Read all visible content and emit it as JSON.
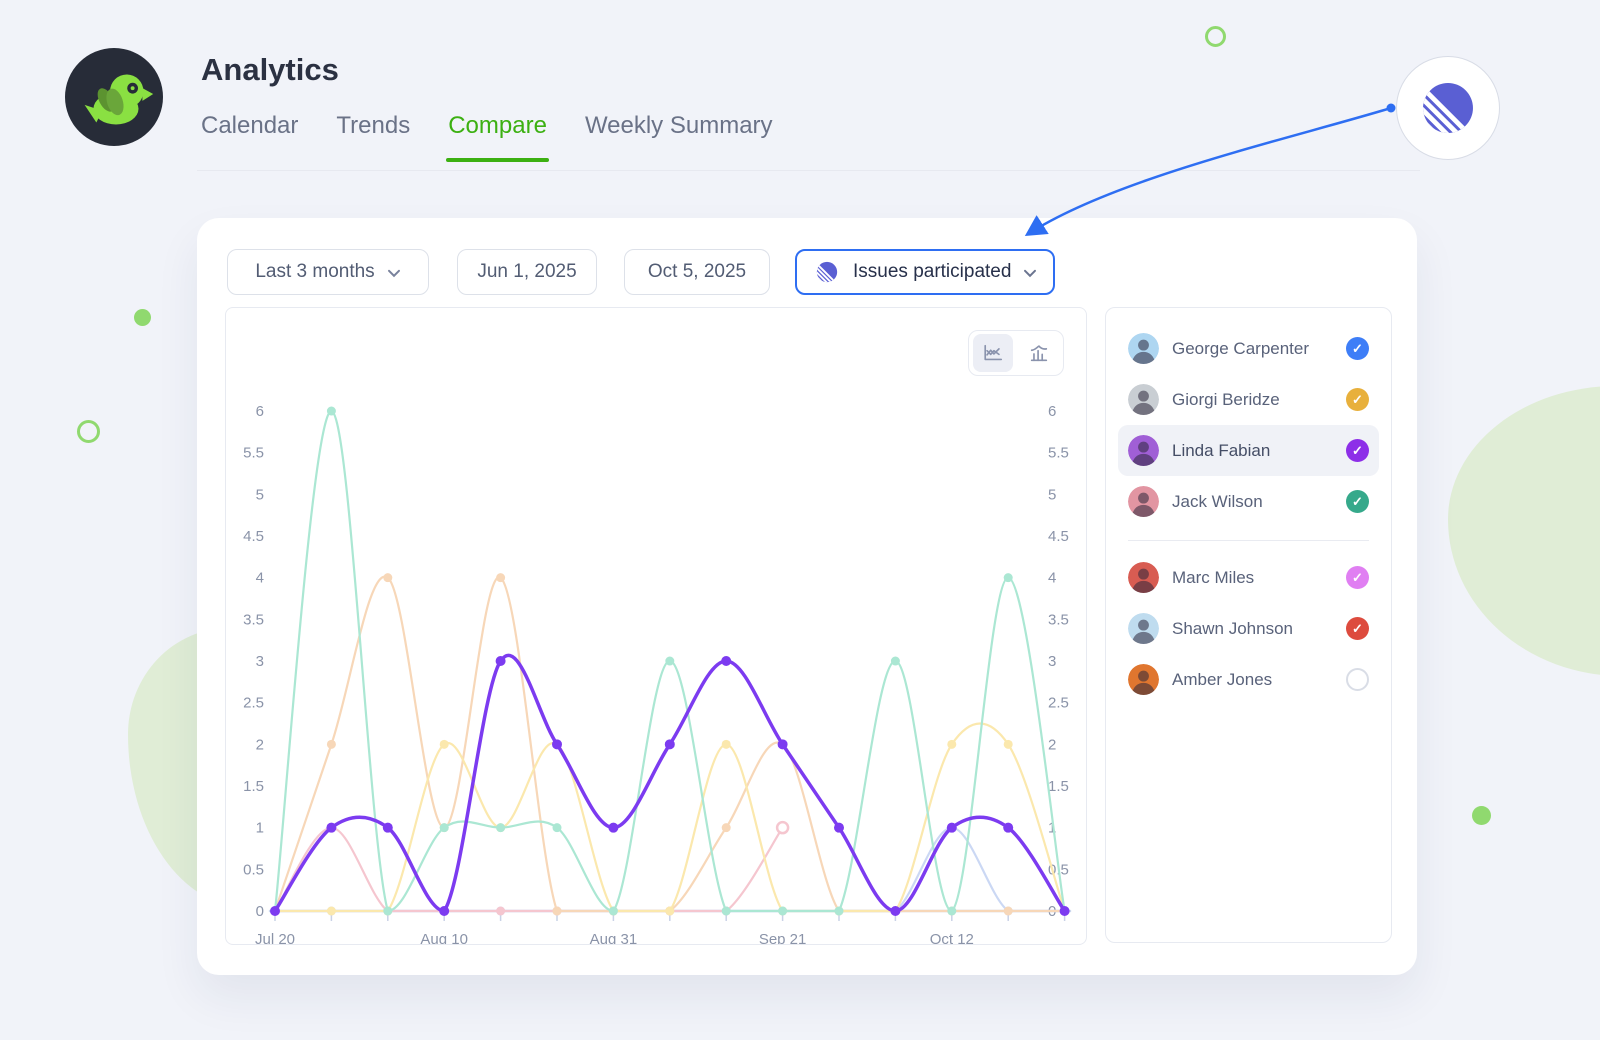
{
  "page": {
    "background": "#f1f3f9"
  },
  "header": {
    "title": "Analytics",
    "tabs": [
      {
        "label": "Calendar",
        "active": false
      },
      {
        "label": "Trends",
        "active": false
      },
      {
        "label": "Compare",
        "active": true
      },
      {
        "label": "Weekly Summary",
        "active": false
      }
    ],
    "accent_green": "#3cb012"
  },
  "profile": {
    "icon": "striped-circle-logo",
    "color": "#5a5fd3"
  },
  "annotation_arrow": {
    "color": "#2e6ef2",
    "from": "profile-avatar",
    "to": "metric-dropdown"
  },
  "filters": {
    "range_label": "Last 3 months",
    "start_date": "Jun 1, 2025",
    "end_date": "Oct 5, 2025",
    "metric_label": "Issues participated",
    "metric_icon": "striped-circle-logo",
    "metric_border": "#2e6ef2"
  },
  "chart_toggle": {
    "options": [
      "line-chart",
      "bar-chart"
    ],
    "active": "line-chart"
  },
  "people": [
    {
      "name": "George Carpenter",
      "checked": true,
      "check_color": "#3e7ef7",
      "avatar_color": "#aed6f1",
      "highlighted": false,
      "group": 1
    },
    {
      "name": "Giorgi Beridze",
      "checked": true,
      "check_color": "#e8b03c",
      "avatar_color": "#c9ced3",
      "highlighted": false,
      "group": 1
    },
    {
      "name": "Linda Fabian",
      "checked": true,
      "check_color": "#8d2fe8",
      "avatar_color": "#a05fd6",
      "highlighted": true,
      "group": 1
    },
    {
      "name": "Jack Wilson",
      "checked": true,
      "check_color": "#36a98b",
      "avatar_color": "#e295a2",
      "highlighted": false,
      "group": 1
    },
    {
      "name": "Marc Miles",
      "checked": true,
      "check_color": "#e07ff2",
      "avatar_color": "#d85c52",
      "highlighted": false,
      "group": 2
    },
    {
      "name": "Shawn Johnson",
      "checked": true,
      "check_color": "#dd4b3e",
      "avatar_color": "#bfdcef",
      "highlighted": false,
      "group": 2
    },
    {
      "name": "Amber Jones",
      "checked": false,
      "check_color": null,
      "avatar_color": "#e0762f",
      "highlighted": false,
      "group": 2
    }
  ],
  "chart_data": {
    "type": "line",
    "n_points": 15,
    "points_per_week": 1,
    "x_tick_labels": [
      "Jul 20",
      "Aug 10",
      "Aug 31",
      "Sep 21",
      "Oct 12"
    ],
    "label_positions": [
      0,
      3,
      6,
      9,
      12
    ],
    "ylim": [
      0,
      6
    ],
    "yticks": [
      0,
      0.5,
      1,
      1.5,
      2,
      2.5,
      3,
      3.5,
      4,
      4.5,
      5,
      5.5,
      6
    ],
    "grid": false,
    "legend": "people-list-panel",
    "series": [
      {
        "name": "light-blue",
        "color": "#cbd8f4",
        "width": 2.2,
        "values": [
          0,
          0,
          0,
          0,
          0,
          0,
          0,
          0,
          0,
          0,
          0,
          0,
          1,
          0,
          0
        ]
      },
      {
        "name": "pink",
        "color": "#f5c6cf",
        "width": 2.2,
        "values": [
          0,
          1,
          0,
          0,
          0,
          0,
          0,
          0,
          0,
          1
        ],
        "end_marker": "open"
      },
      {
        "name": "peach",
        "color": "#f7d7b8",
        "width": 2.2,
        "values": [
          0,
          2,
          4,
          1,
          4,
          0,
          0,
          0,
          1,
          2,
          0,
          0,
          0,
          0,
          0
        ]
      },
      {
        "name": "yellow",
        "color": "#fbe8ad",
        "width": 2.2,
        "values": [
          0,
          0,
          0,
          2,
          1,
          2,
          0,
          0,
          2,
          0,
          0,
          0,
          2,
          2,
          0
        ]
      },
      {
        "name": "teal",
        "color": "#abe7d3",
        "width": 2.2,
        "values": [
          0,
          6,
          0,
          1,
          1,
          1,
          0,
          3,
          0,
          0,
          0,
          3,
          0,
          4,
          0
        ]
      },
      {
        "name": "purple",
        "color": "#7c3bf0",
        "width": 3.5,
        "values": [
          0,
          1,
          1,
          0,
          3,
          2,
          1,
          2,
          3,
          2,
          1,
          0,
          1,
          1,
          0
        ]
      }
    ]
  }
}
